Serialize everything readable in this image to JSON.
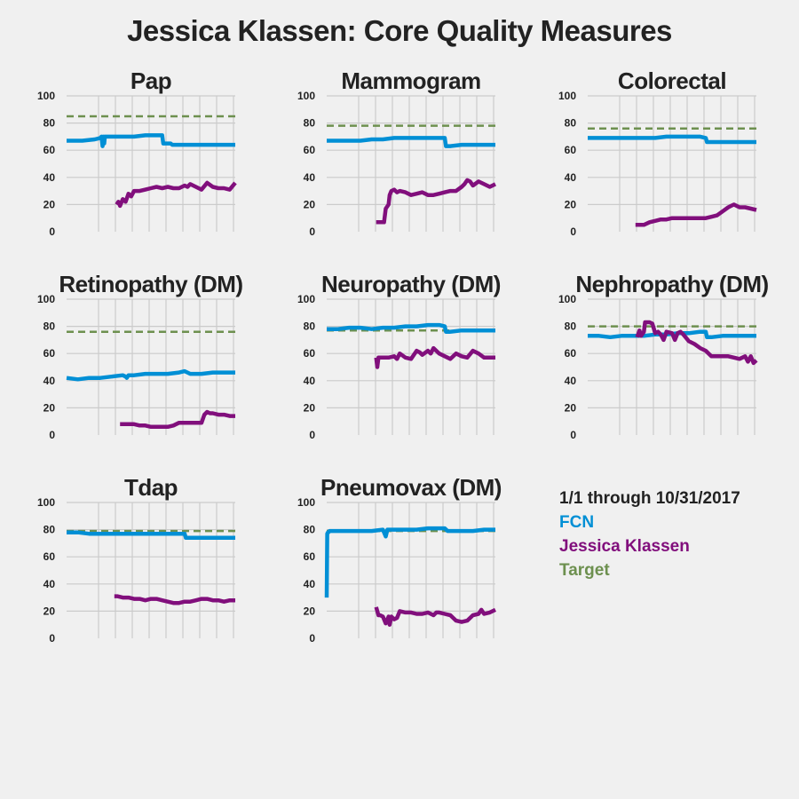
{
  "title": "Jessica Klassen: Core Quality Measures",
  "legend": {
    "period": "1/1 through 10/31/2017",
    "items": [
      {
        "label": "FCN",
        "color": "#008fd5"
      },
      {
        "label": "Jessica Klassen",
        "color": "#810f7c"
      },
      {
        "label": "Target",
        "color": "#6d904f"
      }
    ]
  },
  "chart_data": [
    {
      "type": "line",
      "title": "Pap",
      "xlim": [
        0,
        300
      ],
      "ylim": [
        0,
        100
      ],
      "yticks": [
        0,
        20,
        40,
        60,
        80,
        100
      ],
      "target": 85,
      "series": [
        {
          "name": "FCN",
          "color": "#008fd5",
          "x": [
            0,
            10,
            20,
            28,
            50,
            60,
            62,
            64,
            65,
            67,
            68,
            70,
            75,
            80,
            100,
            120,
            140,
            160,
            170,
            172,
            180,
            185,
            188,
            200,
            220,
            240,
            260,
            280,
            300
          ],
          "y": [
            67,
            67,
            67,
            67,
            68,
            69,
            70,
            63,
            70,
            65,
            70,
            70,
            70,
            70,
            70,
            70,
            71,
            71,
            71,
            65,
            65,
            65,
            64,
            64,
            64,
            64,
            64,
            64,
            64
          ]
        },
        {
          "name": "Jessica Klassen",
          "color": "#810f7c",
          "x": [
            89,
            92,
            95,
            100,
            105,
            110,
            115,
            120,
            130,
            140,
            150,
            160,
            170,
            180,
            190,
            200,
            210,
            215,
            220,
            230,
            240,
            250,
            260,
            270,
            280,
            290,
            300
          ],
          "y": [
            20,
            22,
            19,
            24,
            22,
            28,
            26,
            30,
            30,
            31,
            32,
            33,
            32,
            33,
            32,
            32,
            34,
            33,
            35,
            33,
            31,
            36,
            33,
            32,
            32,
            31,
            36
          ]
        }
      ]
    },
    {
      "type": "line",
      "title": "Mammogram",
      "xlim": [
        0,
        300
      ],
      "ylim": [
        0,
        100
      ],
      "yticks": [
        0,
        20,
        40,
        60,
        80,
        100
      ],
      "target": 78,
      "series": [
        {
          "name": "FCN",
          "color": "#008fd5",
          "x": [
            0,
            20,
            40,
            60,
            80,
            100,
            120,
            140,
            160,
            180,
            200,
            210,
            212,
            220,
            240,
            260,
            280,
            300
          ],
          "y": [
            67,
            67,
            67,
            67,
            68,
            68,
            69,
            69,
            69,
            69,
            69,
            69,
            63,
            63,
            64,
            64,
            64,
            64
          ]
        },
        {
          "name": "Jessica Klassen",
          "color": "#810f7c",
          "x": [
            88,
            90,
            95,
            100,
            102,
            105,
            110,
            112,
            115,
            120,
            125,
            130,
            140,
            150,
            160,
            170,
            180,
            190,
            200,
            210,
            220,
            230,
            240,
            245,
            250,
            255,
            260,
            270,
            280,
            290,
            300
          ],
          "y": [
            7,
            7,
            7,
            7,
            7,
            17,
            20,
            27,
            30,
            31,
            29,
            30,
            29,
            27,
            28,
            29,
            27,
            27,
            28,
            29,
            30,
            30,
            33,
            35,
            38,
            37,
            34,
            37,
            35,
            33,
            35
          ]
        }
      ]
    },
    {
      "type": "line",
      "title": "Colorectal",
      "xlim": [
        0,
        300
      ],
      "ylim": [
        0,
        100
      ],
      "yticks": [
        0,
        20,
        40,
        60,
        80,
        100
      ],
      "target": 76,
      "series": [
        {
          "name": "FCN",
          "color": "#008fd5",
          "x": [
            0,
            20,
            40,
            60,
            80,
            100,
            120,
            140,
            160,
            180,
            200,
            210,
            212,
            220,
            240,
            260,
            280,
            300
          ],
          "y": [
            69,
            69,
            69,
            69,
            69,
            69,
            69,
            70,
            70,
            70,
            70,
            69,
            66,
            66,
            66,
            66,
            66,
            66
          ]
        },
        {
          "name": "Jessica Klassen",
          "color": "#810f7c",
          "x": [
            85,
            90,
            95,
            100,
            105,
            110,
            120,
            130,
            140,
            150,
            160,
            170,
            180,
            190,
            200,
            210,
            220,
            230,
            240,
            250,
            255,
            260,
            270,
            280,
            290,
            300
          ],
          "y": [
            5,
            5,
            5,
            5,
            6,
            7,
            8,
            9,
            9,
            10,
            10,
            10,
            10,
            10,
            10,
            10,
            11,
            12,
            15,
            18,
            19,
            20,
            18,
            18,
            17,
            16
          ]
        }
      ]
    },
    {
      "type": "line",
      "title": "Retinopathy (DM)",
      "xlim": [
        0,
        300
      ],
      "ylim": [
        0,
        100
      ],
      "yticks": [
        0,
        20,
        40,
        60,
        80,
        100
      ],
      "target": 76,
      "series": [
        {
          "name": "FCN",
          "color": "#008fd5",
          "x": [
            0,
            20,
            40,
            60,
            80,
            100,
            105,
            107,
            110,
            120,
            140,
            160,
            180,
            200,
            210,
            215,
            220,
            240,
            260,
            280,
            300
          ],
          "y": [
            42,
            41,
            42,
            42,
            43,
            44,
            43,
            42,
            44,
            44,
            45,
            45,
            45,
            46,
            47,
            46,
            45,
            45,
            46,
            46,
            46
          ]
        },
        {
          "name": "Jessica Klassen",
          "color": "#810f7c",
          "x": [
            95,
            100,
            110,
            120,
            130,
            140,
            150,
            160,
            170,
            180,
            190,
            200,
            210,
            220,
            230,
            240,
            245,
            250,
            255,
            260,
            270,
            280,
            290,
            300
          ],
          "y": [
            8,
            8,
            8,
            8,
            7,
            7,
            6,
            6,
            6,
            6,
            7,
            9,
            9,
            9,
            9,
            9,
            15,
            17,
            16,
            16,
            15,
            15,
            14,
            14
          ]
        }
      ]
    },
    {
      "type": "line",
      "title": "Neuropathy (DM)",
      "xlim": [
        0,
        300
      ],
      "ylim": [
        0,
        100
      ],
      "yticks": [
        0,
        20,
        40,
        60,
        80,
        100
      ],
      "target": 77,
      "series": [
        {
          "name": "FCN",
          "color": "#008fd5",
          "x": [
            0,
            20,
            40,
            60,
            80,
            100,
            120,
            140,
            160,
            180,
            200,
            210,
            212,
            220,
            240,
            260,
            280,
            300
          ],
          "y": [
            78,
            78,
            79,
            79,
            78,
            79,
            79,
            80,
            80,
            81,
            81,
            80,
            76,
            76,
            77,
            77,
            77,
            77
          ]
        },
        {
          "name": "Jessica Klassen",
          "color": "#810f7c",
          "x": [
            88,
            90,
            92,
            95,
            100,
            110,
            120,
            125,
            130,
            140,
            150,
            160,
            165,
            170,
            180,
            185,
            190,
            200,
            210,
            220,
            230,
            240,
            250,
            260,
            270,
            280,
            290,
            300
          ],
          "y": [
            57,
            50,
            57,
            57,
            57,
            57,
            58,
            56,
            60,
            57,
            56,
            62,
            61,
            59,
            62,
            60,
            64,
            60,
            58,
            56,
            60,
            58,
            57,
            62,
            60,
            57,
            57,
            57
          ]
        }
      ]
    },
    {
      "type": "line",
      "title": "Nephropathy (DM)",
      "xlim": [
        0,
        300
      ],
      "ylim": [
        0,
        100
      ],
      "yticks": [
        0,
        20,
        40,
        60,
        80,
        100
      ],
      "target": 80,
      "series": [
        {
          "name": "FCN",
          "color": "#008fd5",
          "x": [
            0,
            20,
            40,
            60,
            80,
            100,
            120,
            140,
            160,
            180,
            200,
            210,
            212,
            220,
            240,
            260,
            280,
            300
          ],
          "y": [
            73,
            73,
            72,
            73,
            73,
            73,
            74,
            74,
            75,
            75,
            76,
            76,
            72,
            72,
            73,
            73,
            73,
            73
          ]
        },
        {
          "name": "Jessica Klassen",
          "color": "#810f7c",
          "x": [
            88,
            92,
            95,
            100,
            102,
            110,
            115,
            120,
            125,
            130,
            135,
            140,
            150,
            155,
            160,
            165,
            170,
            180,
            190,
            200,
            210,
            220,
            230,
            240,
            250,
            260,
            270,
            280,
            285,
            290,
            295,
            300
          ],
          "y": [
            72,
            77,
            73,
            76,
            83,
            83,
            82,
            75,
            76,
            74,
            70,
            76,
            75,
            70,
            75,
            76,
            74,
            69,
            67,
            64,
            62,
            58,
            58,
            58,
            58,
            57,
            56,
            58,
            54,
            58,
            53,
            55
          ]
        }
      ]
    },
    {
      "type": "line",
      "title": "Tdap",
      "xlim": [
        0,
        300
      ],
      "ylim": [
        0,
        100
      ],
      "yticks": [
        0,
        20,
        40,
        60,
        80,
        100
      ],
      "target": 79,
      "series": [
        {
          "name": "FCN",
          "color": "#008fd5",
          "x": [
            0,
            20,
            40,
            60,
            80,
            100,
            120,
            140,
            160,
            180,
            200,
            210,
            212,
            220,
            240,
            260,
            280,
            300
          ],
          "y": [
            78,
            78,
            77,
            77,
            77,
            77,
            77,
            77,
            77,
            77,
            77,
            77,
            74,
            74,
            74,
            74,
            74,
            74
          ]
        },
        {
          "name": "Jessica Klassen",
          "color": "#810f7c",
          "x": [
            85,
            90,
            100,
            110,
            120,
            130,
            140,
            150,
            160,
            170,
            180,
            190,
            200,
            210,
            220,
            230,
            240,
            250,
            260,
            270,
            280,
            290,
            300
          ],
          "y": [
            31,
            31,
            30,
            30,
            29,
            29,
            28,
            29,
            29,
            28,
            27,
            26,
            26,
            27,
            27,
            28,
            29,
            29,
            28,
            28,
            27,
            28,
            28
          ]
        }
      ]
    },
    {
      "type": "line",
      "title": "Pneumovax (DM)",
      "xlim": [
        0,
        300
      ],
      "ylim": [
        0,
        100
      ],
      "yticks": [
        0,
        20,
        40,
        60,
        80,
        100
      ],
      "target": 79,
      "series": [
        {
          "name": "FCN",
          "color": "#008fd5",
          "x": [
            0,
            1,
            2,
            3,
            5,
            10,
            20,
            40,
            60,
            80,
            100,
            105,
            108,
            110,
            120,
            140,
            160,
            180,
            200,
            210,
            215,
            220,
            240,
            260,
            280,
            300
          ],
          "y": [
            30,
            77,
            78,
            78,
            79,
            79,
            79,
            79,
            79,
            79,
            80,
            75,
            80,
            80,
            80,
            80,
            80,
            81,
            81,
            81,
            79,
            79,
            79,
            79,
            80,
            80
          ]
        },
        {
          "name": "Jessica Klassen",
          "color": "#810f7c",
          "x": [
            88,
            92,
            95,
            100,
            105,
            110,
            112,
            115,
            120,
            125,
            130,
            140,
            150,
            160,
            170,
            180,
            190,
            195,
            200,
            210,
            220,
            230,
            240,
            250,
            260,
            270,
            275,
            280,
            290,
            300
          ],
          "y": [
            23,
            17,
            17,
            16,
            11,
            16,
            10,
            16,
            14,
            15,
            20,
            19,
            19,
            18,
            18,
            19,
            17,
            19,
            19,
            18,
            17,
            13,
            12,
            13,
            17,
            18,
            21,
            18,
            19,
            21
          ]
        }
      ]
    }
  ]
}
